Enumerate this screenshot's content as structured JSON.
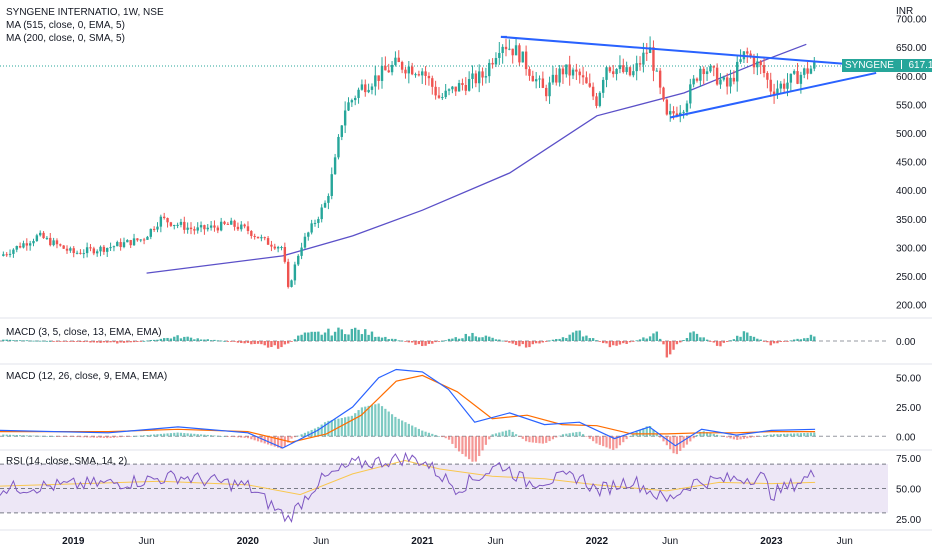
{
  "header": {
    "title": "SYNGENE INTERNATIO, 1W, NSE",
    "ma_line_1": "MA (515, close, 0, EMA, 5)",
    "ma_line_2": "MA (200, close, 0, SMA, 5)",
    "currency": "INR"
  },
  "price_badge": {
    "symbol": "SYNGENE",
    "value": "617.10",
    "color": "#26a69a"
  },
  "colors": {
    "up": "#26a69a",
    "down": "#ef5350",
    "ma": "#5b50c8",
    "trend": "#2962ff",
    "macd": "#2962ff",
    "signal": "#ff6d00",
    "rsi": "#7e57c2",
    "rsi_band": "#ede7f6"
  },
  "panes": {
    "macd_fast": {
      "label": "MACD (3, 5, close, 13, EMA, EMA)",
      "ticks": [
        "0.00"
      ]
    },
    "macd": {
      "label": "MACD (12, 26, close, 9, EMA, EMA)",
      "ticks": [
        "50.00",
        "25.00",
        "0.00"
      ]
    },
    "rsi": {
      "label": "RSI (14, close, SMA, 14, 2)",
      "ticks": [
        "75.00",
        "50.00",
        "25.00"
      ]
    }
  },
  "chart_data": [
    {
      "type": "candlestick",
      "title": "SYNGENE INTERNATIO, 1W, NSE",
      "unit": "INR",
      "y_ticks": [
        200,
        250,
        300,
        350,
        400,
        450,
        500,
        550,
        600,
        650,
        700
      ],
      "ylim": [
        180,
        715
      ],
      "x_labels": [
        {
          "label": "2019",
          "t": 0.0
        },
        {
          "label": "Jun",
          "t": 0.42
        },
        {
          "label": "2020",
          "t": 1.0
        },
        {
          "label": "Jun",
          "t": 1.42
        },
        {
          "label": "2021",
          "t": 2.0
        },
        {
          "label": "Jun",
          "t": 2.42
        },
        {
          "label": "2022",
          "t": 3.0
        },
        {
          "label": "Jun",
          "t": 3.42
        },
        {
          "label": "2023",
          "t": 4.0
        },
        {
          "label": "Jun",
          "t": 4.42
        }
      ],
      "xlim": [
        -0.42,
        4.92
      ],
      "price_path": [
        [
          -0.42,
          285
        ],
        [
          -0.2,
          320
        ],
        [
          0.0,
          290
        ],
        [
          0.2,
          300
        ],
        [
          0.4,
          315
        ],
        [
          0.5,
          350
        ],
        [
          0.7,
          330
        ],
        [
          0.9,
          340
        ],
        [
          1.0,
          330
        ],
        [
          1.1,
          310
        ],
        [
          1.2,
          300
        ],
        [
          1.23,
          225
        ],
        [
          1.3,
          300
        ],
        [
          1.45,
          380
        ],
        [
          1.5,
          450
        ],
        [
          1.55,
          540
        ],
        [
          1.6,
          560
        ],
        [
          1.65,
          580
        ],
        [
          1.75,
          600
        ],
        [
          1.85,
          620
        ],
        [
          2.0,
          610
        ],
        [
          2.1,
          560
        ],
        [
          2.2,
          580
        ],
        [
          2.35,
          600
        ],
        [
          2.45,
          660
        ],
        [
          2.55,
          640
        ],
        [
          2.7,
          570
        ],
        [
          2.8,
          610
        ],
        [
          2.9,
          600
        ],
        [
          3.0,
          555
        ],
        [
          3.05,
          620
        ],
        [
          3.2,
          600
        ],
        [
          3.3,
          650
        ],
        [
          3.4,
          525
        ],
        [
          3.5,
          550
        ],
        [
          3.6,
          620
        ],
        [
          3.75,
          580
        ],
        [
          3.85,
          640
        ],
        [
          3.95,
          610
        ],
        [
          4.0,
          575
        ],
        [
          4.1,
          590
        ],
        [
          4.25,
          617.1
        ]
      ],
      "last_price": 617.1,
      "ma_200": [
        [
          0.42,
          255
        ],
        [
          1.2,
          285
        ],
        [
          1.6,
          320
        ],
        [
          2.0,
          365
        ],
        [
          2.5,
          430
        ],
        [
          3.0,
          530
        ],
        [
          3.5,
          570
        ],
        [
          3.9,
          620
        ],
        [
          4.2,
          655
        ]
      ],
      "trendlines": [
        {
          "from": [
            2.45,
            668
          ],
          "to": [
            4.58,
            617
          ]
        },
        {
          "from": [
            3.42,
            527
          ],
          "to": [
            4.6,
            605
          ]
        }
      ]
    },
    {
      "type": "bar",
      "title": "MACD (3, 5, close, 13, EMA, EMA)",
      "y_ticks": [
        0.0
      ],
      "ylim": [
        -25,
        25
      ],
      "series_shape": [
        [
          -0.42,
          2
        ],
        [
          0.3,
          -3
        ],
        [
          0.6,
          6
        ],
        [
          1.0,
          -3
        ],
        [
          1.2,
          -10
        ],
        [
          1.3,
          8
        ],
        [
          1.6,
          16
        ],
        [
          2.0,
          -6
        ],
        [
          2.3,
          10
        ],
        [
          2.6,
          -8
        ],
        [
          2.9,
          12
        ],
        [
          3.1,
          -9
        ],
        [
          3.35,
          10
        ],
        [
          3.4,
          -18
        ],
        [
          3.55,
          12
        ],
        [
          3.7,
          -7
        ],
        [
          3.85,
          11
        ],
        [
          4.0,
          -5
        ],
        [
          4.25,
          8
        ]
      ]
    },
    {
      "type": "line",
      "title": "MACD (12, 26, close, 9, EMA, EMA)",
      "y_ticks": [
        0.0,
        25.0,
        50.0
      ],
      "ylim": [
        -10,
        60
      ],
      "macd": [
        [
          -0.42,
          5
        ],
        [
          0.2,
          3
        ],
        [
          0.6,
          8
        ],
        [
          1.0,
          3
        ],
        [
          1.2,
          -10
        ],
        [
          1.4,
          5
        ],
        [
          1.6,
          25
        ],
        [
          1.75,
          50
        ],
        [
          1.85,
          57
        ],
        [
          2.0,
          55
        ],
        [
          2.15,
          40
        ],
        [
          2.3,
          12
        ],
        [
          2.5,
          20
        ],
        [
          2.7,
          10
        ],
        [
          2.9,
          12
        ],
        [
          3.1,
          -2
        ],
        [
          3.3,
          8
        ],
        [
          3.45,
          -8
        ],
        [
          3.6,
          6
        ],
        [
          3.8,
          1
        ],
        [
          4.0,
          5
        ],
        [
          4.25,
          6
        ]
      ],
      "signal": [
        [
          -0.42,
          4
        ],
        [
          0.2,
          4
        ],
        [
          0.6,
          6
        ],
        [
          1.0,
          4
        ],
        [
          1.25,
          -5
        ],
        [
          1.45,
          2
        ],
        [
          1.65,
          18
        ],
        [
          1.85,
          47
        ],
        [
          2.0,
          52
        ],
        [
          2.2,
          38
        ],
        [
          2.4,
          15
        ],
        [
          2.6,
          18
        ],
        [
          2.8,
          10
        ],
        [
          3.0,
          9
        ],
        [
          3.2,
          2
        ],
        [
          3.4,
          2
        ],
        [
          3.6,
          3
        ],
        [
          3.8,
          3
        ],
        [
          4.0,
          4
        ],
        [
          4.25,
          4
        ]
      ]
    },
    {
      "type": "line",
      "title": "RSI (14, close, SMA, 14, 2)",
      "y_ticks": [
        25.0,
        50.0,
        75.0
      ],
      "band": [
        30,
        70
      ],
      "ylim": [
        20,
        80
      ],
      "rsi": [
        [
          -0.42,
          50
        ],
        [
          0.3,
          55
        ],
        [
          0.6,
          60
        ],
        [
          1.0,
          52
        ],
        [
          1.23,
          25
        ],
        [
          1.4,
          55
        ],
        [
          1.6,
          70
        ],
        [
          1.75,
          72
        ],
        [
          1.9,
          75
        ],
        [
          2.0,
          73
        ],
        [
          2.2,
          50
        ],
        [
          2.45,
          70
        ],
        [
          2.6,
          55
        ],
        [
          2.9,
          60
        ],
        [
          3.0,
          48
        ],
        [
          3.2,
          57
        ],
        [
          3.4,
          40
        ],
        [
          3.55,
          55
        ],
        [
          3.8,
          58
        ],
        [
          3.95,
          60
        ],
        [
          4.0,
          45
        ],
        [
          4.25,
          62
        ]
      ],
      "rsi_ma": [
        [
          -0.42,
          52
        ],
        [
          0.5,
          56
        ],
        [
          1.0,
          53
        ],
        [
          1.3,
          45
        ],
        [
          1.6,
          62
        ],
        [
          1.9,
          73
        ],
        [
          2.1,
          66
        ],
        [
          2.4,
          60
        ],
        [
          2.7,
          58
        ],
        [
          3.0,
          53
        ],
        [
          3.4,
          48
        ],
        [
          3.7,
          55
        ],
        [
          4.0,
          54
        ],
        [
          4.25,
          55
        ]
      ]
    }
  ]
}
